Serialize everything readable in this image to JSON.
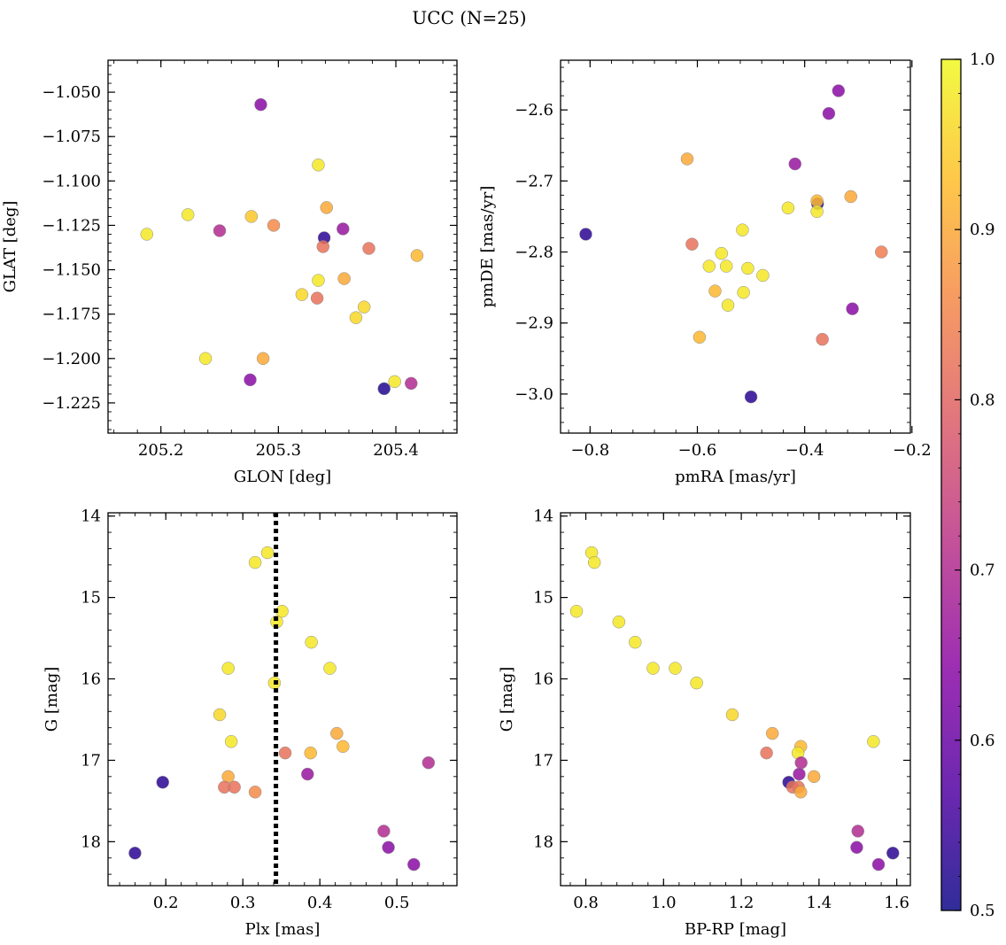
{
  "figure": {
    "suptitle": "UCC (N=25)"
  },
  "colorbar": {
    "vmin": 0.5,
    "vmax": 1.0,
    "ticks": [
      0.5,
      0.6,
      0.7,
      0.8,
      0.9,
      1.0
    ],
    "tick_labels": [
      "0.5",
      "0.6",
      "0.7",
      "0.8",
      "0.9",
      "1.0"
    ],
    "colormap": "plasma",
    "colormap_stops": [
      "#0d0887",
      "#5302a3",
      "#8b0aa5",
      "#b83289",
      "#db5c68",
      "#f48849",
      "#febd2a",
      "#f0f921"
    ]
  },
  "chart_data": [
    {
      "type": "scatter",
      "xlabel": "GLON [deg]",
      "ylabel": "GLAT [deg]",
      "xlim": [
        205.155,
        205.452
      ],
      "ylim": [
        -1.242,
        -1.032
      ],
      "y_inverted": false,
      "xticks": [
        205.2,
        205.3,
        205.4
      ],
      "xtick_labels": [
        "205.2",
        "205.3",
        "205.4"
      ],
      "yticks": [
        -1.05,
        -1.075,
        -1.1,
        -1.125,
        -1.15,
        -1.175,
        -1.2,
        -1.225
      ],
      "ytick_labels": [
        "−1.050",
        "−1.075",
        "−1.100",
        "−1.125",
        "−1.150",
        "−1.175",
        "−1.200",
        "−1.225"
      ],
      "points": [
        {
          "x": 205.285,
          "y": -1.057,
          "c": 0.64
        },
        {
          "x": 205.334,
          "y": -1.091,
          "c": 0.98
        },
        {
          "x": 205.341,
          "y": -1.115,
          "c": 0.9
        },
        {
          "x": 205.223,
          "y": -1.119,
          "c": 0.98
        },
        {
          "x": 205.277,
          "y": -1.12,
          "c": 0.94
        },
        {
          "x": 205.296,
          "y": -1.125,
          "c": 0.86
        },
        {
          "x": 205.355,
          "y": -1.127,
          "c": 0.66
        },
        {
          "x": 205.25,
          "y": -1.128,
          "c": 0.7
        },
        {
          "x": 205.188,
          "y": -1.13,
          "c": 0.98
        },
        {
          "x": 205.339,
          "y": -1.132,
          "c": 0.53
        },
        {
          "x": 205.338,
          "y": -1.137,
          "c": 0.82
        },
        {
          "x": 205.377,
          "y": -1.138,
          "c": 0.82
        },
        {
          "x": 205.418,
          "y": -1.142,
          "c": 0.92
        },
        {
          "x": 205.356,
          "y": -1.155,
          "c": 0.9
        },
        {
          "x": 205.334,
          "y": -1.156,
          "c": 0.98
        },
        {
          "x": 205.32,
          "y": -1.164,
          "c": 0.96
        },
        {
          "x": 205.333,
          "y": -1.166,
          "c": 0.82
        },
        {
          "x": 205.373,
          "y": -1.171,
          "c": 0.96
        },
        {
          "x": 205.366,
          "y": -1.177,
          "c": 0.96
        },
        {
          "x": 205.238,
          "y": -1.2,
          "c": 0.98
        },
        {
          "x": 205.287,
          "y": -1.2,
          "c": 0.9
        },
        {
          "x": 205.276,
          "y": -1.212,
          "c": 0.64
        },
        {
          "x": 205.399,
          "y": -1.213,
          "c": 0.98
        },
        {
          "x": 205.413,
          "y": -1.214,
          "c": 0.7
        },
        {
          "x": 205.39,
          "y": -1.217,
          "c": 0.52
        }
      ]
    },
    {
      "type": "scatter",
      "xlabel": "pmRA [mas/yr]",
      "ylabel": "pmDE [mas/yr]",
      "xlim": [
        -0.855,
        -0.203
      ],
      "ylim": [
        -3.055,
        -2.53
      ],
      "y_inverted": false,
      "xticks": [
        -0.8,
        -0.6,
        -0.4,
        -0.2
      ],
      "xtick_labels": [
        "−0.8",
        "−0.6",
        "−0.4",
        "−0.2"
      ],
      "yticks": [
        -2.6,
        -2.7,
        -2.8,
        -2.9,
        -3.0
      ],
      "ytick_labels": [
        "−2.6",
        "−2.7",
        "−2.8",
        "−2.9",
        "−3.0"
      ],
      "points": [
        {
          "x": -0.337,
          "y": -2.573,
          "c": 0.64
        },
        {
          "x": -0.355,
          "y": -2.605,
          "c": 0.64
        },
        {
          "x": -0.619,
          "y": -2.669,
          "c": 0.9
        },
        {
          "x": -0.418,
          "y": -2.676,
          "c": 0.66
        },
        {
          "x": -0.376,
          "y": -2.732,
          "c": 0.53
        },
        {
          "x": -0.377,
          "y": -2.728,
          "c": 0.92
        },
        {
          "x": -0.314,
          "y": -2.722,
          "c": 0.9
        },
        {
          "x": -0.431,
          "y": -2.738,
          "c": 0.98
        },
        {
          "x": -0.377,
          "y": -2.743,
          "c": 0.98
        },
        {
          "x": -0.808,
          "y": -2.775,
          "c": 0.53
        },
        {
          "x": -0.516,
          "y": -2.769,
          "c": 0.98
        },
        {
          "x": -0.61,
          "y": -2.789,
          "c": 0.82
        },
        {
          "x": -0.257,
          "y": -2.8,
          "c": 0.84
        },
        {
          "x": -0.555,
          "y": -2.802,
          "c": 0.98
        },
        {
          "x": -0.578,
          "y": -2.82,
          "c": 0.98
        },
        {
          "x": -0.546,
          "y": -2.82,
          "c": 0.98
        },
        {
          "x": -0.506,
          "y": -2.823,
          "c": 0.98
        },
        {
          "x": -0.478,
          "y": -2.833,
          "c": 0.98
        },
        {
          "x": -0.567,
          "y": -2.855,
          "c": 0.92
        },
        {
          "x": -0.514,
          "y": -2.857,
          "c": 0.98
        },
        {
          "x": -0.543,
          "y": -2.875,
          "c": 0.98
        },
        {
          "x": -0.311,
          "y": -2.88,
          "c": 0.64
        },
        {
          "x": -0.596,
          "y": -2.92,
          "c": 0.92
        },
        {
          "x": -0.367,
          "y": -2.923,
          "c": 0.82
        },
        {
          "x": -0.5,
          "y": -3.004,
          "c": 0.53
        }
      ]
    },
    {
      "type": "scatter",
      "xlabel": "Plx [mas]",
      "ylabel": "G [mag]",
      "xlim": [
        0.125,
        0.578
      ],
      "ylim": [
        18.54,
        13.96
      ],
      "y_inverted": true,
      "xticks": [
        0.2,
        0.3,
        0.4,
        0.5
      ],
      "xtick_labels": [
        "0.2",
        "0.3",
        "0.4",
        "0.5"
      ],
      "yticks": [
        14,
        15,
        16,
        17,
        18
      ],
      "ytick_labels": [
        "14",
        "15",
        "16",
        "17",
        "18"
      ],
      "vline": {
        "x": 0.343,
        "style": "dotted"
      },
      "points": [
        {
          "x": 0.332,
          "y": 14.45,
          "c": 0.98
        },
        {
          "x": 0.316,
          "y": 14.57,
          "c": 0.98
        },
        {
          "x": 0.351,
          "y": 15.17,
          "c": 0.98
        },
        {
          "x": 0.344,
          "y": 15.3,
          "c": 0.98
        },
        {
          "x": 0.389,
          "y": 15.55,
          "c": 0.98
        },
        {
          "x": 0.281,
          "y": 15.87,
          "c": 0.98
        },
        {
          "x": 0.413,
          "y": 15.87,
          "c": 0.98
        },
        {
          "x": 0.341,
          "y": 16.05,
          "c": 0.98
        },
        {
          "x": 0.27,
          "y": 16.44,
          "c": 0.96
        },
        {
          "x": 0.422,
          "y": 16.67,
          "c": 0.9
        },
        {
          "x": 0.285,
          "y": 16.77,
          "c": 0.98
        },
        {
          "x": 0.43,
          "y": 16.83,
          "c": 0.92
        },
        {
          "x": 0.355,
          "y": 16.91,
          "c": 0.82
        },
        {
          "x": 0.388,
          "y": 16.91,
          "c": 0.92
        },
        {
          "x": 0.541,
          "y": 17.03,
          "c": 0.7
        },
        {
          "x": 0.384,
          "y": 17.17,
          "c": 0.66
        },
        {
          "x": 0.281,
          "y": 17.2,
          "c": 0.9
        },
        {
          "x": 0.196,
          "y": 17.27,
          "c": 0.53
        },
        {
          "x": 0.276,
          "y": 17.33,
          "c": 0.82
        },
        {
          "x": 0.289,
          "y": 17.33,
          "c": 0.82
        },
        {
          "x": 0.316,
          "y": 17.39,
          "c": 0.86
        },
        {
          "x": 0.483,
          "y": 17.87,
          "c": 0.7
        },
        {
          "x": 0.489,
          "y": 18.07,
          "c": 0.64
        },
        {
          "x": 0.16,
          "y": 18.14,
          "c": 0.53
        },
        {
          "x": 0.522,
          "y": 18.28,
          "c": 0.64
        }
      ]
    },
    {
      "type": "scatter",
      "xlabel": "BP-RP [mag]",
      "ylabel": "G [mag]",
      "xlim": [
        0.735,
        1.635
      ],
      "ylim": [
        18.54,
        13.96
      ],
      "y_inverted": true,
      "xticks": [
        0.8,
        1.0,
        1.2,
        1.4,
        1.6
      ],
      "xtick_labels": [
        "0.8",
        "1.0",
        "1.2",
        "1.4",
        "1.6"
      ],
      "yticks": [
        14,
        15,
        16,
        17,
        18
      ],
      "ytick_labels": [
        "14",
        "15",
        "16",
        "17",
        "18"
      ],
      "points": [
        {
          "x": 0.815,
          "y": 14.45,
          "c": 0.98
        },
        {
          "x": 0.822,
          "y": 14.57,
          "c": 0.98
        },
        {
          "x": 0.776,
          "y": 15.17,
          "c": 0.98
        },
        {
          "x": 0.885,
          "y": 15.3,
          "c": 0.98
        },
        {
          "x": 0.927,
          "y": 15.55,
          "c": 0.98
        },
        {
          "x": 0.973,
          "y": 15.87,
          "c": 0.98
        },
        {
          "x": 1.03,
          "y": 15.87,
          "c": 0.98
        },
        {
          "x": 1.085,
          "y": 16.05,
          "c": 0.98
        },
        {
          "x": 1.177,
          "y": 16.44,
          "c": 0.96
        },
        {
          "x": 1.28,
          "y": 16.67,
          "c": 0.9
        },
        {
          "x": 1.54,
          "y": 16.77,
          "c": 0.98
        },
        {
          "x": 1.353,
          "y": 16.83,
          "c": 0.92
        },
        {
          "x": 1.265,
          "y": 16.91,
          "c": 0.82
        },
        {
          "x": 1.346,
          "y": 16.91,
          "c": 0.98
        },
        {
          "x": 1.354,
          "y": 17.03,
          "c": 0.7
        },
        {
          "x": 1.349,
          "y": 17.17,
          "c": 0.66
        },
        {
          "x": 1.387,
          "y": 17.2,
          "c": 0.9
        },
        {
          "x": 1.322,
          "y": 17.27,
          "c": 0.53
        },
        {
          "x": 1.332,
          "y": 17.33,
          "c": 0.82
        },
        {
          "x": 1.347,
          "y": 17.33,
          "c": 0.82
        },
        {
          "x": 1.353,
          "y": 17.39,
          "c": 0.9
        },
        {
          "x": 1.5,
          "y": 17.87,
          "c": 0.7
        },
        {
          "x": 1.497,
          "y": 18.07,
          "c": 0.64
        },
        {
          "x": 1.59,
          "y": 18.14,
          "c": 0.53
        },
        {
          "x": 1.553,
          "y": 18.28,
          "c": 0.64
        }
      ]
    }
  ]
}
